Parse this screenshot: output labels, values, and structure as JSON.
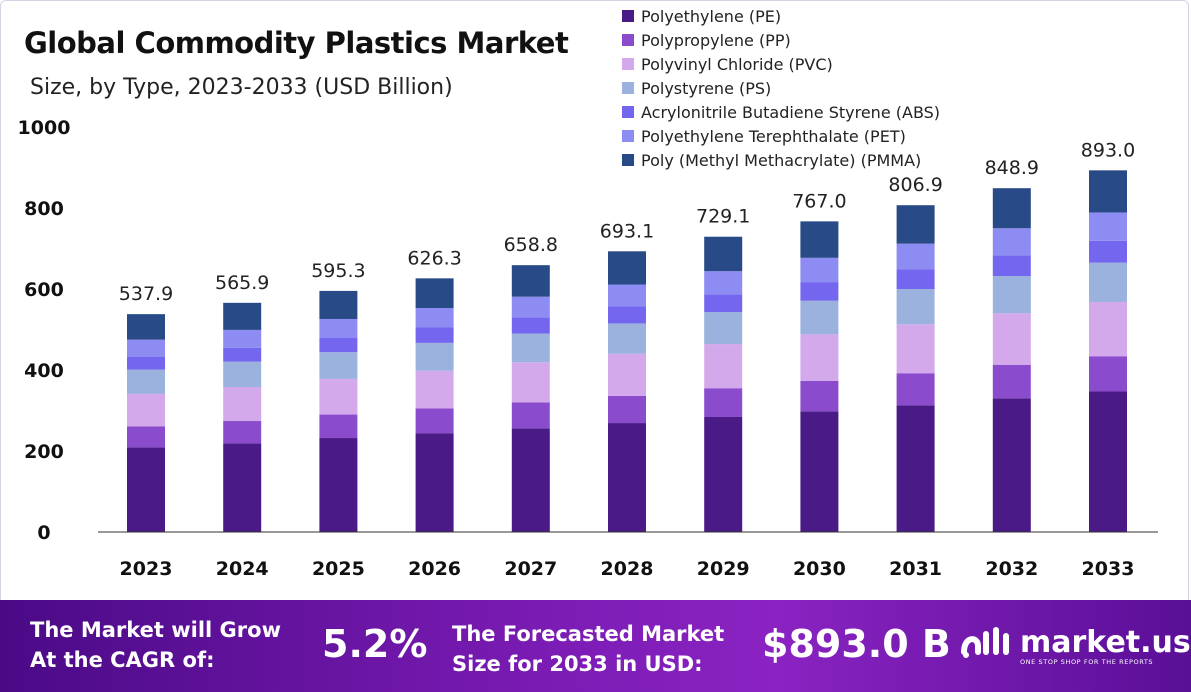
{
  "title": "Global Commodity Plastics Market",
  "subtitle": "Size, by Type, 2023-2033 (USD Billion)",
  "colors": [
    "#4a1a86",
    "#8a4ccc",
    "#d3a9ec",
    "#9bb2de",
    "#7466ee",
    "#8c8cf2",
    "#284a86"
  ],
  "chart_data": {
    "type": "bar",
    "stacked": true,
    "categories": [
      "2023",
      "2024",
      "2025",
      "2026",
      "2027",
      "2028",
      "2029",
      "2030",
      "2031",
      "2032",
      "2033"
    ],
    "totals": [
      537.9,
      565.9,
      595.3,
      626.3,
      658.8,
      693.1,
      729.1,
      767.0,
      806.9,
      848.9,
      893.0
    ],
    "total_labels": [
      "537.9",
      "565.9",
      "595.3",
      "626.3",
      "658.8",
      "693.1",
      "729.1",
      "767.0",
      "806.9",
      "848.9",
      "893.0"
    ],
    "series": [
      {
        "name": "Polyethylene (PE)",
        "values": [
          209,
          219,
          232,
          244,
          256,
          269,
          284,
          298,
          313,
          330,
          347
        ]
      },
      {
        "name": "Polypropylene (PP)",
        "values": [
          52,
          55,
          58,
          61,
          64,
          67,
          71,
          75,
          79,
          83,
          87
        ]
      },
      {
        "name": "Polyvinyl Chloride (PVC)",
        "values": [
          80,
          84,
          88,
          93,
          99,
          104,
          109,
          115,
          121,
          127,
          134
        ]
      },
      {
        "name": "Polystyrene (PS)",
        "values": [
          60,
          63,
          66,
          69,
          71,
          75,
          79,
          83,
          87,
          92,
          97
        ]
      },
      {
        "name": "Acrylonitrile Butadiene Styrene (ABS)",
        "values": [
          32,
          34,
          36,
          38,
          40,
          42,
          44,
          46,
          49,
          51,
          54
        ]
      },
      {
        "name": "Polyethylene Terephthalate (PET)",
        "values": [
          42,
          44,
          46,
          48,
          51,
          54,
          57,
          60,
          63,
          67,
          70
        ]
      },
      {
        "name": "Poly (Methyl Methacrylate) (PMMA)",
        "values": [
          62.9,
          66.9,
          69.3,
          73.3,
          77.8,
          82.1,
          85.1,
          90.0,
          94.9,
          98.9,
          104.0
        ]
      }
    ],
    "ylim": [
      0,
      1000
    ],
    "yticks": [
      0,
      200,
      400,
      600,
      800,
      1000
    ],
    "ytick_labels": [
      "0",
      "200",
      "400",
      "600",
      "800",
      "1000"
    ],
    "grid": false,
    "legend_position": "top-right"
  },
  "banner": {
    "cagr_label_line1": "The Market will Grow",
    "cagr_label_line2": "At the CAGR of:",
    "cagr_value": "5.2%",
    "forecast_label_line1": "The Forecasted Market",
    "forecast_label_line2": "Size for 2033 in USD:",
    "forecast_value": "$893.0 B",
    "brand_name": "market.us",
    "brand_tagline": "ONE STOP SHOP FOR THE REPORTS"
  }
}
